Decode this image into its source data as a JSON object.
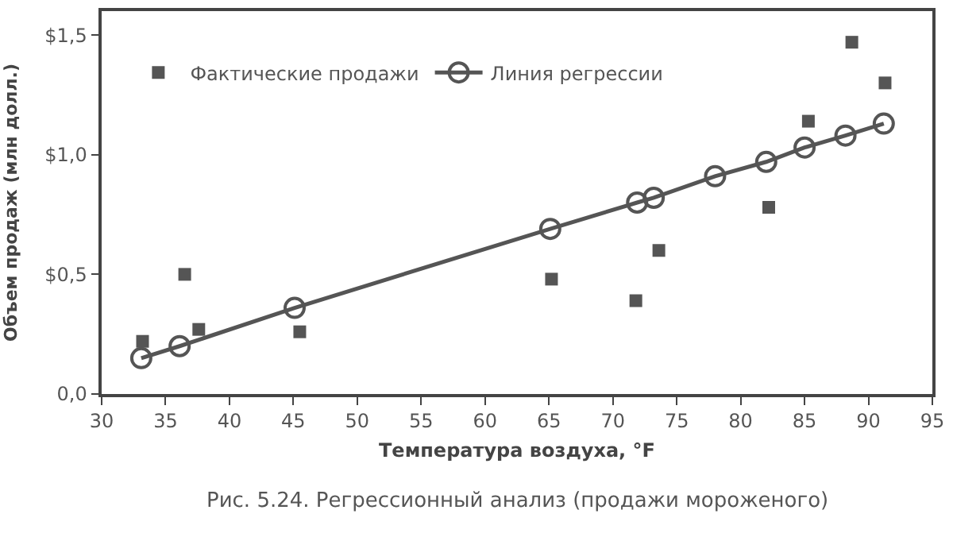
{
  "chart_data": {
    "type": "scatter",
    "xlabel": "Температура воздуха, °F",
    "ylabel": "Объем продаж (млн долл.)",
    "annotations": [
      "Рис. 5.24. Регрессионный анализ (продажи мороженого)"
    ],
    "series": [
      {
        "name": "Фактические продажи",
        "marker": "square",
        "color": "#555555",
        "x": [
          33.2,
          36.5,
          37.6,
          45.5,
          65.2,
          71.8,
          73.6,
          82.2,
          85.3,
          88.7,
          91.3
        ],
        "values": [
          0.22,
          0.5,
          0.27,
          0.26,
          0.48,
          0.39,
          0.6,
          0.78,
          1.14,
          1.47,
          1.3
        ]
      },
      {
        "name": "Линия регрессии",
        "type": "line",
        "marker": "circle",
        "color": "#555555",
        "x": [
          33.1,
          36.1,
          45.1,
          65.1,
          71.9,
          73.2,
          78.0,
          82.0,
          85.0,
          88.2,
          91.2
        ],
        "values": [
          0.15,
          0.2,
          0.36,
          0.69,
          0.8,
          0.82,
          0.91,
          0.97,
          1.03,
          1.08,
          1.13
        ]
      }
    ],
    "xlim": [
      30,
      95
    ],
    "xticks": [
      30,
      35,
      40,
      45,
      50,
      55,
      60,
      65,
      70,
      75,
      80,
      85,
      90,
      95
    ],
    "ylim": [
      0,
      1.6
    ],
    "yticks": [
      {
        "value": 0,
        "label": "0,0"
      },
      {
        "value": 0.5,
        "label": "$0,5"
      },
      {
        "value": 1.0,
        "label": "$1,0"
      },
      {
        "value": 1.5,
        "label": "$1,5"
      }
    ],
    "grid": false,
    "legend": "top left"
  }
}
